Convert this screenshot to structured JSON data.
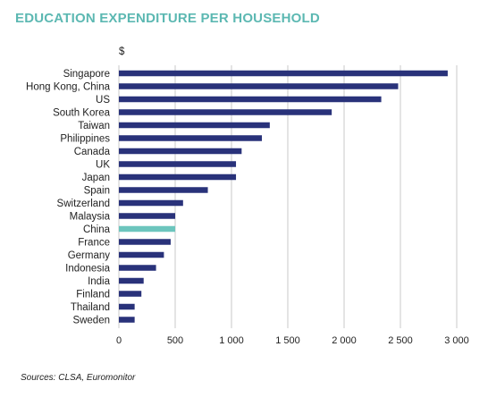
{
  "header": {
    "title": "EDUCATION EXPENDITURE PER HOUSEHOLD"
  },
  "footer": {
    "source": "Sources: CLSA, Euromonitor"
  },
  "chart_data": {
    "type": "bar",
    "orientation": "horizontal",
    "title": "EDUCATION EXPENDITURE PER HOUSEHOLD",
    "unit_label": "$",
    "categories": [
      "Singapore",
      "Hong Kong, China",
      "US",
      "South Korea",
      "Taiwan",
      "Philippines",
      "Canada",
      "UK",
      "Japan",
      "Spain",
      "Switzerland",
      "Malaysia",
      "China",
      "France",
      "Germany",
      "Indonesia",
      "India",
      "Finland",
      "Thailand",
      "Sweden"
    ],
    "values": [
      2920,
      2480,
      2330,
      1890,
      1340,
      1270,
      1090,
      1040,
      1040,
      790,
      570,
      500,
      500,
      460,
      400,
      330,
      220,
      200,
      140,
      140
    ],
    "highlight": "China",
    "colors": {
      "bar": "#29327a",
      "highlight": "#6cc5bd",
      "grid": "#c8c8c8"
    },
    "xlim": [
      0,
      3000
    ],
    "xticks": [
      0,
      500,
      1000,
      1500,
      2000,
      2500,
      3000
    ],
    "xtick_labels": [
      "0",
      "500",
      "1 000",
      "1 500",
      "2 000",
      "2 500",
      "3 000"
    ],
    "grid": "vertical",
    "legend": "none"
  }
}
